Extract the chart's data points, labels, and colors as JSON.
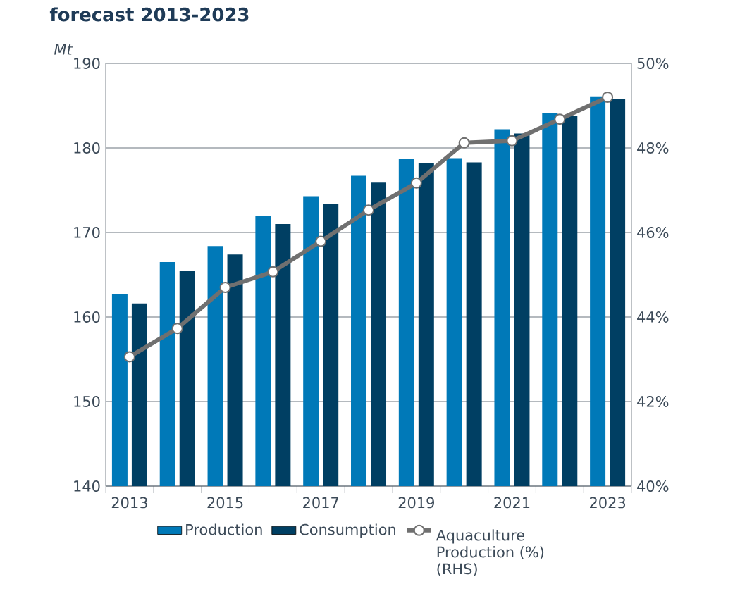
{
  "chart_data": {
    "type": "bar",
    "title": "forecast 2013-2023",
    "ylabel": "Mt",
    "categories": [
      "2013",
      null,
      "2015",
      null,
      "2017",
      null,
      "2019",
      null,
      "2021",
      null,
      "2023"
    ],
    "series": [
      {
        "name": "Production",
        "color": "#0079b8",
        "values": [
          162.7,
          166.5,
          168.4,
          172.0,
          174.3,
          176.7,
          178.7,
          178.8,
          182.2,
          184.1,
          186.1
        ]
      },
      {
        "name": "Consumption",
        "color": "#003f63",
        "values": [
          161.6,
          165.5,
          167.4,
          171.0,
          173.4,
          175.9,
          178.2,
          178.3,
          181.7,
          183.8,
          185.8
        ]
      },
      {
        "name": "Aquaculture Production (%) (RHS)",
        "type": "line",
        "axis": "y2",
        "color": "#707070",
        "marker": "circle",
        "values": [
          43.06,
          43.73,
          44.7,
          45.07,
          45.79,
          46.53,
          47.17,
          48.12,
          48.17,
          48.68,
          49.2
        ]
      }
    ],
    "ylim": [
      140,
      190
    ],
    "yticks": [
      140,
      150,
      160,
      170,
      180,
      190
    ],
    "y2lim": [
      40,
      50
    ],
    "y2ticks": [
      {
        "value": 40,
        "label": "40%"
      },
      {
        "value": 42,
        "label": "42%"
      },
      {
        "value": 44,
        "label": "44%"
      },
      {
        "value": 46,
        "label": "46%"
      },
      {
        "value": 48,
        "label": "48%"
      },
      {
        "value": 50,
        "label": "50%"
      }
    ],
    "grid": "y",
    "legend": "bottom"
  }
}
